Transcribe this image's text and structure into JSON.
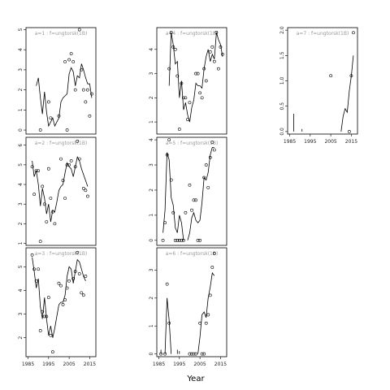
{
  "figure": {
    "xlabel": "Year",
    "line_color": "#000000",
    "point_color": "#000000",
    "label_color": "#999999"
  },
  "chart_data": [
    {
      "type": "scatter",
      "subtitle": "a=1 : f=ungtorsk(1B)",
      "xlim": [
        1984,
        2018
      ],
      "ylim": [
        -0.2,
        5.1
      ],
      "xticks": [],
      "yticks": [
        0,
        1,
        2,
        3,
        4,
        5
      ],
      "points": [
        [
          1991,
          0.0
        ],
        [
          1995,
          1.4
        ],
        [
          1996,
          0.6
        ],
        [
          2000,
          0.7
        ],
        [
          2003,
          3.4
        ],
        [
          2004,
          0.0
        ],
        [
          2005,
          3.5
        ],
        [
          2006,
          3.8
        ],
        [
          2007,
          3.4
        ],
        [
          2008,
          2.0
        ],
        [
          2010,
          5.0
        ],
        [
          2011,
          3.0
        ],
        [
          2012,
          2.0
        ],
        [
          2013,
          1.4
        ],
        [
          2014,
          2.0
        ],
        [
          2015,
          0.7
        ],
        [
          2016,
          1.8
        ]
      ],
      "line": [
        [
          1989,
          2.2
        ],
        [
          1990,
          2.6
        ],
        [
          1991,
          1.6
        ],
        [
          1992,
          0.8
        ],
        [
          1993,
          1.9
        ],
        [
          1994,
          0.9
        ],
        [
          1995,
          0.2
        ],
        [
          1996,
          0.4
        ],
        [
          1997,
          0.6
        ],
        [
          1998,
          0.2
        ],
        [
          1999,
          0.4
        ],
        [
          2000,
          0.6
        ],
        [
          2001,
          1.4
        ],
        [
          2002,
          1.6
        ],
        [
          2003,
          1.7
        ],
        [
          2004,
          1.8
        ],
        [
          2005,
          2.8
        ],
        [
          2006,
          3.1
        ],
        [
          2007,
          2.9
        ],
        [
          2008,
          2.2
        ],
        [
          2009,
          2.7
        ],
        [
          2010,
          2.6
        ],
        [
          2011,
          3.3
        ],
        [
          2012,
          3.0
        ],
        [
          2013,
          2.6
        ],
        [
          2014,
          2.3
        ],
        [
          2015,
          2.3
        ],
        [
          2016,
          1.6
        ]
      ]
    },
    {
      "type": "scatter",
      "subtitle": "a=4 : f=ungtorsk(1B)",
      "xlim": [
        1984,
        2018
      ],
      "ylim": [
        0.5,
        4.9
      ],
      "xticks": [],
      "yticks": [
        1,
        2,
        3,
        4
      ],
      "points": [
        [
          1990,
          3.2
        ],
        [
          1991,
          4.7
        ],
        [
          1992,
          4.1
        ],
        [
          1993,
          4.0
        ],
        [
          1994,
          2.9
        ],
        [
          1995,
          0.7
        ],
        [
          1996,
          2.6
        ],
        [
          1997,
          2.0
        ],
        [
          1998,
          2.0
        ],
        [
          1999,
          1.1
        ],
        [
          2000,
          1.8
        ],
        [
          2003,
          3.0
        ],
        [
          2004,
          3.0
        ],
        [
          2005,
          2.2
        ],
        [
          2006,
          2.0
        ],
        [
          2007,
          3.2
        ],
        [
          2008,
          2.7
        ],
        [
          2010,
          3.9
        ],
        [
          2011,
          4.1
        ],
        [
          2012,
          3.5
        ],
        [
          2013,
          4.7
        ],
        [
          2014,
          3.2
        ],
        [
          2015,
          4.1
        ],
        [
          2016,
          3.8
        ]
      ],
      "line": [
        [
          1990,
          2.5
        ],
        [
          1991,
          4.7
        ],
        [
          1992,
          4.2
        ],
        [
          1993,
          3.4
        ],
        [
          1994,
          3.5
        ],
        [
          1995,
          2.0
        ],
        [
          1996,
          2.7
        ],
        [
          1997,
          1.5
        ],
        [
          1998,
          1.8
        ],
        [
          1999,
          1.3
        ],
        [
          2000,
          1.0
        ],
        [
          2001,
          1.6
        ],
        [
          2002,
          1.9
        ],
        [
          2003,
          2.6
        ],
        [
          2004,
          2.5
        ],
        [
          2005,
          2.5
        ],
        [
          2006,
          2.4
        ],
        [
          2007,
          3.2
        ],
        [
          2008,
          3.7
        ],
        [
          2009,
          4.0
        ],
        [
          2010,
          3.5
        ],
        [
          2011,
          3.8
        ],
        [
          2012,
          3.6
        ],
        [
          2013,
          4.7
        ],
        [
          2014,
          4.4
        ],
        [
          2015,
          4.2
        ],
        [
          2016,
          3.7
        ]
      ]
    },
    {
      "type": "scatter",
      "subtitle": "a=7 : f=ungtorsk(1B)",
      "xlim": [
        1984,
        2018
      ],
      "ylim": [
        -0.05,
        2.05
      ],
      "xticks": [
        1985,
        1995,
        2005,
        2015
      ],
      "yticks": [
        0.0,
        0.5,
        1.0,
        1.5,
        2.0
      ],
      "points": [
        [
          2005,
          1.1
        ],
        [
          2014,
          0.0
        ],
        [
          2015,
          1.1
        ],
        [
          2016,
          1.95
        ]
      ],
      "line": [
        [
          2010,
          0.0
        ],
        [
          2011,
          0.3
        ],
        [
          2012,
          0.45
        ],
        [
          2013,
          0.38
        ],
        [
          2014,
          0.8
        ],
        [
          2015,
          1.1
        ],
        [
          2016,
          1.5
        ]
      ],
      "segments": [
        [
          [
            1987,
            0.0
          ],
          [
            1987,
            0.35
          ]
        ],
        [
          [
            1991,
            0.0
          ],
          [
            1991,
            0.05
          ]
        ]
      ]
    },
    {
      "type": "scatter",
      "subtitle": "a=2 : f=ungtorsk(1B)",
      "xlim": [
        1984,
        2018
      ],
      "ylim": [
        0.9,
        6.4
      ],
      "xticks": [],
      "yticks": [
        1,
        2,
        3,
        4,
        5,
        6
      ],
      "points": [
        [
          1987,
          4.9
        ],
        [
          1988,
          3.5
        ],
        [
          1989,
          4.7
        ],
        [
          1990,
          4.7
        ],
        [
          1991,
          1.1
        ],
        [
          1992,
          3.9
        ],
        [
          1993,
          3.0
        ],
        [
          1994,
          2.1
        ],
        [
          1995,
          4.8
        ],
        [
          1996,
          3.3
        ],
        [
          1997,
          2.6
        ],
        [
          1998,
          2.0
        ],
        [
          2001,
          5.3
        ],
        [
          2002,
          4.2
        ],
        [
          2003,
          3.3
        ],
        [
          2004,
          5.0
        ],
        [
          2005,
          5.0
        ],
        [
          2006,
          5.2
        ],
        [
          2008,
          4.9
        ],
        [
          2009,
          6.2
        ],
        [
          2010,
          5.3
        ],
        [
          2012,
          3.8
        ],
        [
          2013,
          3.7
        ],
        [
          2014,
          3.4
        ]
      ],
      "line": [
        [
          1987,
          5.2
        ],
        [
          1988,
          4.4
        ],
        [
          1989,
          4.7
        ],
        [
          1990,
          4.0
        ],
        [
          1991,
          2.9
        ],
        [
          1992,
          3.8
        ],
        [
          1993,
          3.3
        ],
        [
          1994,
          2.5
        ],
        [
          1995,
          3.0
        ],
        [
          1996,
          2.1
        ],
        [
          1997,
          2.7
        ],
        [
          1998,
          2.6
        ],
        [
          1999,
          3.1
        ],
        [
          2000,
          3.7
        ],
        [
          2001,
          3.9
        ],
        [
          2002,
          4.0
        ],
        [
          2003,
          4.6
        ],
        [
          2004,
          5.1
        ],
        [
          2005,
          4.9
        ],
        [
          2006,
          4.8
        ],
        [
          2007,
          4.4
        ],
        [
          2008,
          4.9
        ],
        [
          2009,
          5.4
        ],
        [
          2010,
          5.2
        ],
        [
          2011,
          4.8
        ],
        [
          2012,
          4.5
        ],
        [
          2013,
          4.2
        ],
        [
          2014,
          3.9
        ]
      ]
    },
    {
      "type": "scatter",
      "subtitle": "a=5 : f=ungtorsk(1B)",
      "xlim": [
        1984,
        2018
      ],
      "ylim": [
        -0.2,
        4.1
      ],
      "xticks": [],
      "yticks": [
        0,
        1,
        2,
        3,
        4
      ],
      "points": [
        [
          1987,
          0.0
        ],
        [
          1988,
          0.7
        ],
        [
          1989,
          3.4
        ],
        [
          1990,
          4.0
        ],
        [
          1991,
          2.4
        ],
        [
          1992,
          1.1
        ],
        [
          1993,
          0.0
        ],
        [
          1994,
          0.0
        ],
        [
          1995,
          0.0
        ],
        [
          1996,
          0.0
        ],
        [
          1997,
          0.0
        ],
        [
          1998,
          1.1
        ],
        [
          2000,
          2.2
        ],
        [
          2001,
          1.2
        ],
        [
          2002,
          1.6
        ],
        [
          2003,
          1.6
        ],
        [
          2004,
          0.0
        ],
        [
          2005,
          0.0
        ],
        [
          2007,
          2.5
        ],
        [
          2008,
          3.0
        ],
        [
          2009,
          2.1
        ],
        [
          2010,
          3.3
        ],
        [
          2011,
          3.9
        ],
        [
          2012,
          3.6
        ]
      ],
      "line": [
        [
          1987,
          0.3
        ],
        [
          1988,
          1.2
        ],
        [
          1989,
          3.5
        ],
        [
          1990,
          3.2
        ],
        [
          1991,
          1.7
        ],
        [
          1992,
          1.4
        ],
        [
          1993,
          0.5
        ],
        [
          1994,
          0.3
        ],
        [
          1995,
          1.0
        ],
        [
          1996,
          0.7
        ],
        [
          1997,
          0.0
        ]
      ],
      "line2": [
        [
          1999,
          0.0
        ],
        [
          2000,
          0.3
        ],
        [
          2001,
          0.9
        ],
        [
          2002,
          1.1
        ],
        [
          2003,
          0.8
        ],
        [
          2004,
          0.7
        ],
        [
          2005,
          0.8
        ],
        [
          2006,
          1.5
        ],
        [
          2007,
          2.5
        ],
        [
          2008,
          2.4
        ],
        [
          2009,
          2.7
        ],
        [
          2010,
          3.4
        ],
        [
          2011,
          3.7
        ],
        [
          2012,
          3.7
        ]
      ]
    },
    {
      "type": "scatter",
      "subtitle": "a=3 : f=ungtorsk(1B)",
      "xlim": [
        1984,
        2018
      ],
      "ylim": [
        1.2,
        5.8
      ],
      "xticks": [
        1985,
        1995,
        2005,
        2015
      ],
      "yticks": [
        2,
        3,
        4,
        5
      ],
      "points": [
        [
          1987,
          5.5
        ],
        [
          1988,
          4.9
        ],
        [
          1989,
          4.4
        ],
        [
          1990,
          4.9
        ],
        [
          1991,
          2.3
        ],
        [
          1992,
          3.1
        ],
        [
          1993,
          2.9
        ],
        [
          1994,
          2.9
        ],
        [
          1995,
          3.7
        ],
        [
          1996,
          2.1
        ],
        [
          1997,
          1.4
        ],
        [
          2000,
          4.3
        ],
        [
          2001,
          4.2
        ],
        [
          2002,
          3.4
        ],
        [
          2003,
          3.6
        ],
        [
          2004,
          4.1
        ],
        [
          2005,
          4.4
        ],
        [
          2007,
          4.5
        ],
        [
          2008,
          4.8
        ],
        [
          2009,
          5.6
        ],
        [
          2010,
          4.7
        ],
        [
          2011,
          3.9
        ],
        [
          2012,
          3.8
        ],
        [
          2013,
          4.6
        ]
      ],
      "line": [
        [
          1987,
          5.4
        ],
        [
          1988,
          4.8
        ],
        [
          1989,
          4.1
        ],
        [
          1990,
          4.5
        ],
        [
          1991,
          3.3
        ],
        [
          1992,
          2.8
        ],
        [
          1993,
          3.7
        ],
        [
          1994,
          2.8
        ],
        [
          1995,
          2.1
        ],
        [
          1996,
          2.5
        ],
        [
          1997,
          2.0
        ],
        [
          1998,
          2.4
        ],
        [
          1999,
          2.9
        ],
        [
          2000,
          3.4
        ],
        [
          2001,
          3.5
        ],
        [
          2002,
          3.5
        ],
        [
          2003,
          3.8
        ],
        [
          2004,
          4.6
        ],
        [
          2005,
          5.0
        ],
        [
          2006,
          4.9
        ],
        [
          2007,
          4.3
        ],
        [
          2008,
          4.8
        ],
        [
          2009,
          5.3
        ],
        [
          2010,
          5.2
        ],
        [
          2011,
          4.9
        ],
        [
          2012,
          4.6
        ],
        [
          2013,
          4.4
        ]
      ]
    },
    {
      "type": "scatter",
      "subtitle": "a=6 : f=ungtorsk(1B)",
      "xlim": [
        1984,
        2018
      ],
      "ylim": [
        -0.1,
        3.8
      ],
      "xticks": [
        1985,
        1995,
        2005,
        2015
      ],
      "yticks": [
        0,
        1,
        2,
        3
      ],
      "points": [
        [
          1986,
          0.0
        ],
        [
          1988,
          0.0
        ],
        [
          1989,
          2.5
        ],
        [
          1990,
          1.1
        ],
        [
          2000,
          0.0
        ],
        [
          2001,
          0.0
        ],
        [
          2002,
          0.0
        ],
        [
          2003,
          0.0
        ],
        [
          2005,
          1.1
        ],
        [
          2006,
          0.0
        ],
        [
          2007,
          0.0
        ],
        [
          2008,
          1.1
        ],
        [
          2009,
          1.4
        ],
        [
          2010,
          2.1
        ],
        [
          2011,
          3.1
        ],
        [
          2012,
          3.6
        ]
      ],
      "line": [
        [
          1988,
          0.0
        ],
        [
          1989,
          2.0
        ],
        [
          1990,
          1.2
        ],
        [
          1991,
          0.0
        ]
      ],
      "line2": [
        [
          2004,
          0.0
        ],
        [
          2005,
          0.6
        ],
        [
          2006,
          1.4
        ],
        [
          2007,
          1.5
        ],
        [
          2008,
          1.3
        ],
        [
          2009,
          2.0
        ],
        [
          2010,
          2.4
        ],
        [
          2011,
          2.9
        ],
        [
          2012,
          2.8
        ]
      ],
      "segments": [
        [
          [
            1986,
            0.0
          ],
          [
            1986,
            0.15
          ]
        ],
        [
          [
            1994,
            0.0
          ],
          [
            1994,
            0.15
          ]
        ],
        [
          [
            1995,
            0.0
          ],
          [
            1995,
            0.1
          ]
        ]
      ]
    }
  ]
}
